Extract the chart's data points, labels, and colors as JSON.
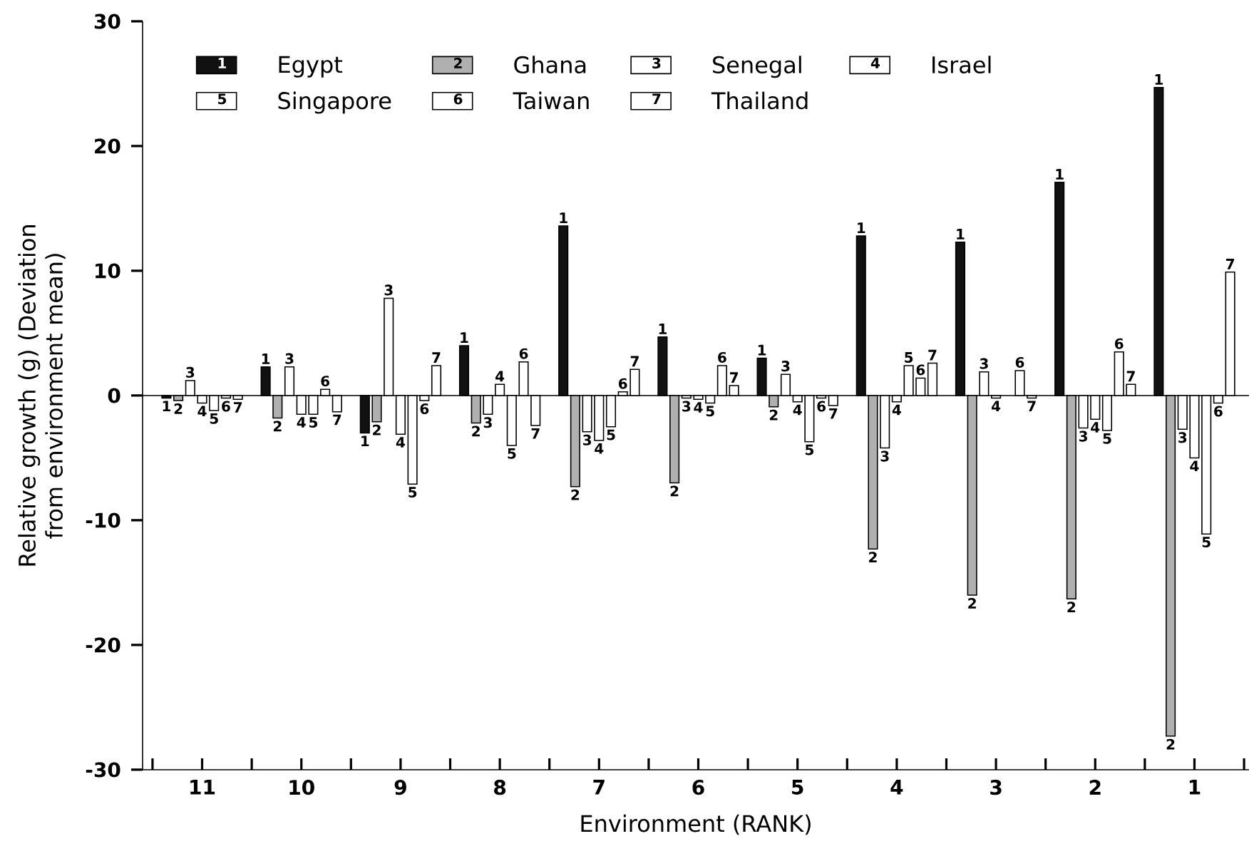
{
  "chart_data": {
    "type": "bar",
    "xlabel": "Environment (RANK)",
    "ylabel": "Relative growth (g) (Deviation from environment mean)",
    "categories": [
      "11",
      "10",
      "9",
      "8",
      "7",
      "6",
      "5",
      "4",
      "3",
      "2",
      "1"
    ],
    "series": [
      {
        "name": "Egypt",
        "color": "#111111",
        "values": [
          -0.2,
          2.3,
          -3.0,
          4.0,
          13.6,
          4.7,
          3.0,
          12.8,
          12.3,
          17.1,
          24.7
        ]
      },
      {
        "name": "Ghana",
        "color": "#b0b0b0",
        "values": [
          -0.4,
          -1.8,
          -2.1,
          -2.2,
          -7.3,
          -7.0,
          -0.9,
          -12.3,
          -16.0,
          -16.3,
          -27.3
        ]
      },
      {
        "name": "Senegal",
        "color": "#ffffff",
        "values": [
          1.2,
          2.3,
          7.8,
          -1.5,
          -2.9,
          -0.2,
          1.7,
          -4.2,
          1.9,
          -2.6,
          -2.7
        ]
      },
      {
        "name": "Israel",
        "color": "#ffffff",
        "values": [
          -0.6,
          -1.5,
          -3.1,
          0.9,
          -3.6,
          -0.3,
          -0.5,
          -0.5,
          -0.2,
          -1.9,
          -5.0
        ]
      },
      {
        "name": "Singapore",
        "color": "#ffffff",
        "values": [
          -1.2,
          -1.5,
          -7.1,
          -4.0,
          -2.5,
          -0.6,
          -3.7,
          2.4,
          null,
          -2.8,
          -11.1
        ]
      },
      {
        "name": "Taiwan",
        "color": "#ffffff",
        "values": [
          -0.2,
          0.5,
          -0.4,
          2.7,
          0.3,
          2.4,
          -0.2,
          1.4,
          2.0,
          3.5,
          -0.6
        ]
      },
      {
        "name": "Thailand",
        "color": "#ffffff",
        "values": [
          -0.3,
          -1.3,
          2.4,
          -2.4,
          2.1,
          0.8,
          -0.8,
          2.6,
          -0.2,
          0.9,
          9.9
        ]
      }
    ],
    "annotations": [
      "1",
      "1",
      "1",
      "1",
      "1",
      "1",
      "1",
      "1",
      "1",
      "1",
      "1",
      "2",
      "2",
      "2",
      "2",
      "2",
      "2",
      "2",
      "2",
      "2",
      "2",
      "2",
      "3",
      "3",
      "3",
      "3",
      "3",
      "3",
      "3",
      "3",
      "3",
      "3",
      "3",
      "4",
      "4",
      "4",
      "4",
      "4",
      "4",
      "4",
      "4",
      "4",
      "4",
      "4",
      "5",
      "5",
      "5",
      "5",
      "5",
      "5",
      "5",
      "5",
      "5",
      "5",
      "6",
      "6",
      "6",
      "6",
      "6",
      "6",
      "6",
      "6",
      "6",
      "6",
      "6",
      "7",
      "7",
      "7",
      "7",
      "7",
      "7",
      "7",
      "7",
      "7",
      "7",
      "7"
    ],
    "ref_lines": [
      {
        "axis": "y",
        "value": 0
      }
    ],
    "ylim": [
      -30,
      30
    ],
    "yticks": [
      -30,
      -20,
      -10,
      0,
      10,
      20,
      30
    ],
    "grid": false,
    "legend": "top left"
  }
}
